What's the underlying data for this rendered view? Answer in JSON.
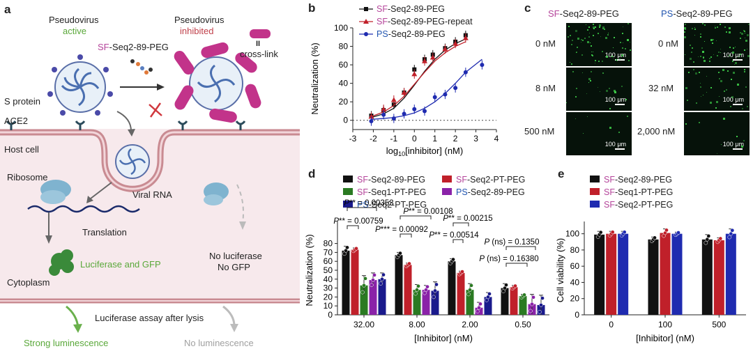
{
  "panel_labels": {
    "a": "a",
    "b": "b",
    "c": "c",
    "d": "d",
    "e": "e"
  },
  "panel_a": {
    "pseudovirus_left": "Pseudovirus",
    "active": "active",
    "pseudovirus_right": "Pseudovirus",
    "inhibited": "inhibited",
    "sf_prefix": "SF",
    "agent_suffix": "-Seq2-89-PEG",
    "crosslink_symbol": "II",
    "crosslink": "cross-link",
    "s_protein": "S protein",
    "ace2": "ACE2",
    "host_cell": "Host cell",
    "ribosome": "Ribosome",
    "viral_rna": "Viral RNA",
    "translation": "Translation",
    "luciferase_gfp": "Luciferase and GFP",
    "cytoplasm": "Cytoplasm",
    "no_luciferase": "No luciferase",
    "no_gfp": "No GFP",
    "assay": "Luciferase assay after lysis",
    "strong": "Strong luminescence",
    "none": "No luminescence"
  },
  "panel_c": {
    "left_prefix": "SF",
    "right_prefix": "PS",
    "suffix": "-Seq2-89-PEG",
    "left_concs": [
      "0 nM",
      "8 nM",
      "500 nM"
    ],
    "right_concs": [
      "0 nM",
      "32 nM",
      "2,000 nM"
    ],
    "scale": "100 μm"
  },
  "colors": {
    "sf": "#b5459b",
    "ps": "#2255b0",
    "black": "#111111",
    "red": "#c0202a",
    "blue": "#1f2bb0",
    "green": "#2a7a22",
    "purple": "#8a22a8",
    "navy": "#1a1a8c",
    "green_text": "#5aa83a",
    "red_text": "#c0404a",
    "gray_text": "#a0a0a0"
  },
  "chart_data": [
    {
      "id": "b",
      "type": "scatter",
      "xlabel": "log10[inhibitor] (nM)",
      "ylabel": "Neutralization (%)",
      "xlim": [
        -3,
        4
      ],
      "ylim": [
        -10,
        100
      ],
      "xticks": [
        -3,
        -2,
        -1,
        0,
        1,
        2,
        3,
        4
      ],
      "yticks": [
        0,
        20,
        40,
        60,
        80,
        100
      ],
      "series": [
        {
          "prefix": "SF",
          "name": "-Seq2-89-PEG",
          "marker": "square",
          "color": "#111111",
          "x": [
            -2.1,
            -1.5,
            -1,
            -0.5,
            0,
            0.5,
            0.9,
            1.5,
            2,
            2.5
          ],
          "y": [
            5,
            11,
            17,
            30,
            55,
            66,
            71,
            78,
            85,
            92
          ],
          "curve": [
            [
              -2.1,
              3
            ],
            [
              -1.5,
              7
            ],
            [
              -1,
              13
            ],
            [
              -0.5,
              24
            ],
            [
              0,
              38
            ],
            [
              0.5,
              53
            ],
            [
              1,
              66
            ],
            [
              1.5,
              76
            ],
            [
              2,
              83
            ],
            [
              2.5,
              88
            ]
          ]
        },
        {
          "prefix": "SF",
          "name": "-Seq2-89-PEG-repeat",
          "marker": "triangle",
          "color": "#c0202a",
          "x": [
            -2.1,
            -1.5,
            -1,
            -0.5,
            0,
            0.5,
            0.9,
            1.5,
            2,
            2.5
          ],
          "y": [
            4,
            12,
            22,
            30,
            50,
            64,
            68,
            77,
            83,
            89
          ],
          "curve": [
            [
              -2.1,
              4
            ],
            [
              -1.5,
              9
            ],
            [
              -1,
              16
            ],
            [
              -0.5,
              26
            ],
            [
              0,
              39
            ],
            [
              0.5,
              52
            ],
            [
              1,
              64
            ],
            [
              1.5,
              73
            ],
            [
              2,
              80
            ],
            [
              2.5,
              85
            ]
          ]
        },
        {
          "prefix": "PS",
          "name": "-Seq2-89-PEG",
          "marker": "circle",
          "color": "#1f2bb0",
          "x": [
            -2.1,
            -1.5,
            -1,
            -0.5,
            0,
            0.5,
            1,
            1.5,
            2,
            2.5,
            3.3
          ],
          "y": [
            -1,
            6,
            2,
            7,
            12,
            10,
            25,
            28,
            35,
            52,
            60
          ],
          "curve": [
            [
              -2.1,
              1
            ],
            [
              -1.5,
              2
            ],
            [
              -1,
              3
            ],
            [
              -0.5,
              5
            ],
            [
              0,
              8
            ],
            [
              0.5,
              13
            ],
            [
              1,
              20
            ],
            [
              1.5,
              29
            ],
            [
              2,
              40
            ],
            [
              2.5,
              52
            ],
            [
              3.3,
              66
            ]
          ]
        }
      ]
    },
    {
      "id": "d",
      "type": "bar",
      "xlabel": "[Inhibitor] (nM)",
      "ylabel": "Neutralization (%)",
      "ylim": [
        0,
        100
      ],
      "yticks": [
        0,
        10,
        20,
        30,
        40,
        50,
        60,
        70,
        80
      ],
      "categories": [
        "32.00",
        "8.00",
        "2.00",
        "0.50"
      ],
      "series": [
        {
          "prefix": "SF",
          "name": "-Seq2-89-PEG",
          "color": "#111111",
          "values": [
            72,
            67,
            60,
            30
          ],
          "err": [
            5,
            3,
            3,
            5
          ]
        },
        {
          "prefix": "SF",
          "name": "-Seq2-PT-PEG",
          "color": "#c0202a",
          "values": [
            73,
            56,
            47,
            31
          ],
          "err": [
            2,
            2,
            2,
            2
          ]
        },
        {
          "prefix": "SF",
          "name": "-Seq1-PT-PEG",
          "color": "#2a7a22",
          "values": [
            33,
            28,
            28,
            21
          ],
          "err": [
            11,
            6,
            7,
            2
          ]
        },
        {
          "prefix": "PS",
          "name": "-Seq2-89-PEG",
          "color": "#8a22a8",
          "values": [
            39,
            28,
            8,
            12
          ],
          "err": [
            8,
            5,
            6,
            11
          ]
        },
        {
          "prefix": "PS",
          "name": "-Seq2-PT-PEG",
          "color": "#1a1a8c",
          "values": [
            40,
            27,
            20,
            11
          ],
          "err": [
            7,
            10,
            5,
            11
          ]
        }
      ],
      "annotations": [
        "P** = 0.00353",
        "P** = 0.00759",
        "P** = 0.00108",
        "P*** = 0.00092",
        "P** = 0.00215",
        "P** = 0.00514",
        "P (ns) = 0.1350",
        "P (ns) = 0.16380"
      ]
    },
    {
      "id": "e",
      "type": "bar",
      "xlabel": "[Inhibitor] (nM)",
      "ylabel": "Cell viability (%)",
      "ylim": [
        0,
        110
      ],
      "yticks": [
        0,
        20,
        40,
        60,
        80,
        100
      ],
      "categories": [
        "0",
        "100",
        "500"
      ],
      "series": [
        {
          "prefix": "SF",
          "name": "-Seq2-89-PEG",
          "color": "#111111",
          "values": [
            99,
            93,
            93
          ],
          "err": [
            4,
            3,
            6
          ]
        },
        {
          "prefix": "SF",
          "name": "-Seq1-PT-PEG",
          "color": "#c0202a",
          "values": [
            100,
            101,
            92
          ],
          "err": [
            3,
            5,
            3
          ]
        },
        {
          "prefix": "SF",
          "name": "-Seq2-PT-PEG",
          "color": "#1f2bb0",
          "values": [
            100,
            100,
            100
          ],
          "err": [
            3,
            2,
            6
          ]
        }
      ]
    }
  ]
}
